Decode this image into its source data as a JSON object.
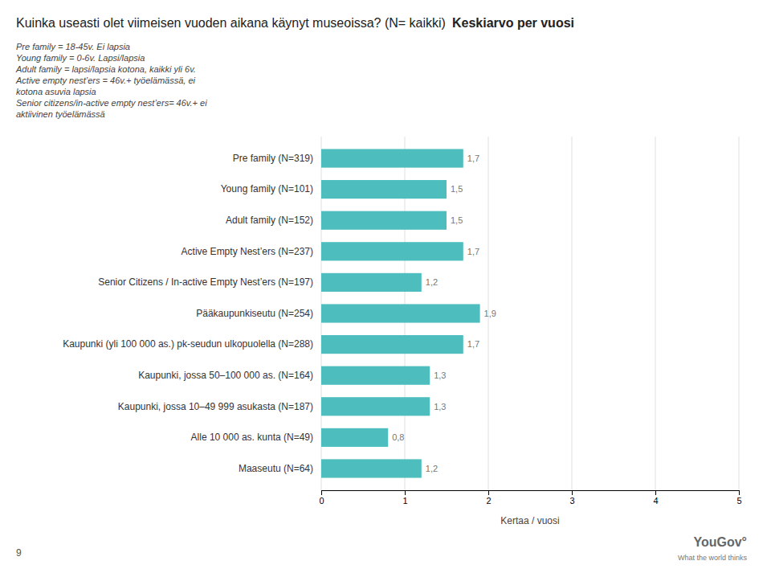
{
  "chart_data": {
    "type": "bar",
    "orientation": "horizontal",
    "title": "Kuinka useasti olet viimeisen vuoden aikana käynyt museoissa? (N= kaikki)",
    "subtitle": "Keskiarvo per vuosi",
    "categories": [
      "Pre family (N=319)",
      "Young family (N=101)",
      "Adult family (N=152)",
      "Active Empty Nest’ers (N=237)",
      "Senior Citizens / In-active Empty Nest’ers (N=197)",
      "Pääkaupunkiseutu (N=254)",
      "Kaupunki (yli 100 000 as.) pk-seudun ulkopuolella (N=288)",
      "Kaupunki, jossa 50–100 000 as. (N=164)",
      "Kaupunki, jossa 10–49 999 asukasta (N=187)",
      "Alle 10 000 as. kunta (N=49)",
      "Maaseutu (N=64)"
    ],
    "values": [
      1.7,
      1.5,
      1.5,
      1.7,
      1.2,
      1.9,
      1.7,
      1.3,
      1.3,
      0.8,
      1.2
    ],
    "value_labels": [
      "1,7",
      "1,5",
      "1,5",
      "1,7",
      "1,2",
      "1,9",
      "1,7",
      "1,3",
      "1,3",
      "0,8",
      "1,2"
    ],
    "data_labels": true,
    "color": "#4DBDBD",
    "xlabel": "Kertaa / vuosi",
    "xlim": [
      0,
      5
    ],
    "xticks": [
      0,
      1,
      2,
      3,
      4,
      5
    ],
    "grid": true,
    "annotations": [
      "Pre family = 18-45v. Ei lapsia",
      "Young family = 0-6v. Lapsi/lapsia",
      "Adult family = lapsi/lapsia kotona, kaikki yli 6v.",
      "Active empty nest’ers = 46v.+ työelämässä, ei",
      "kotona asuvia lapsia",
      "Senior citizens/in-active empty nest’ers= 46v.+ ei",
      "aktiivinen työelämässä"
    ],
    "footer": [
      "9",
      "You",
      "Gov",
      "°",
      "What the world thinks"
    ]
  }
}
